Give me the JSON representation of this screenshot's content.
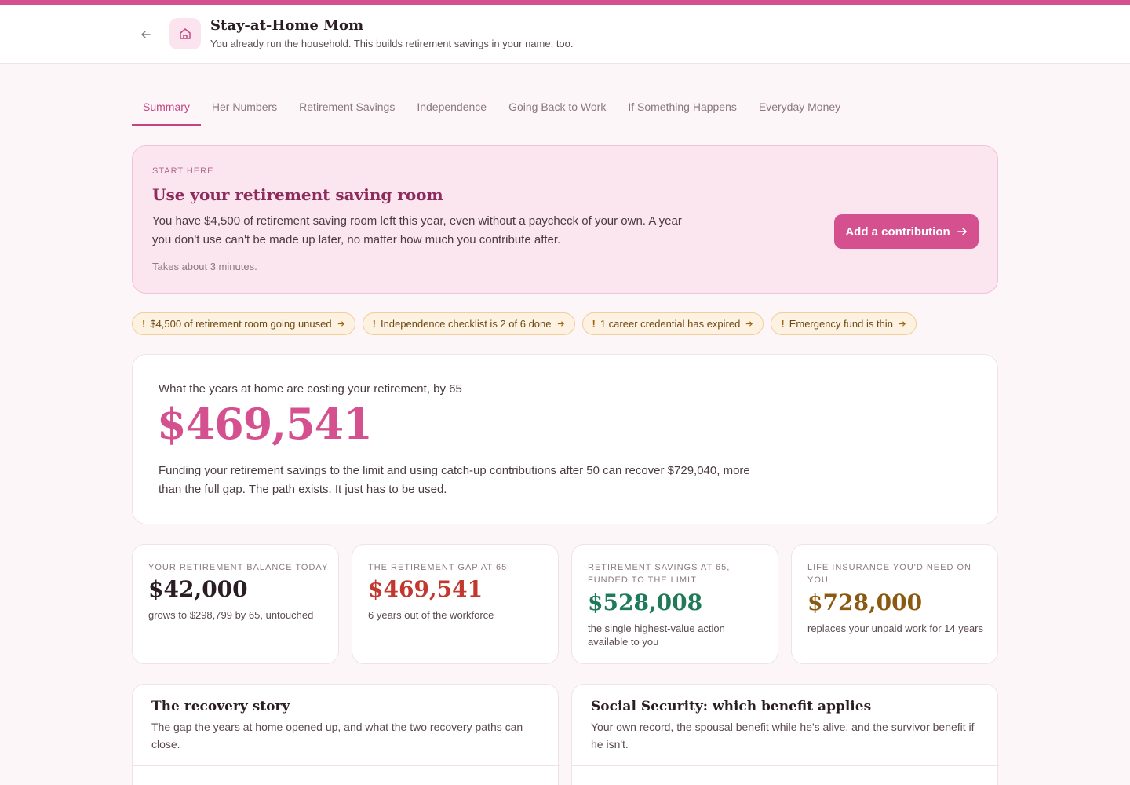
{
  "header": {
    "title": "Stay-at-Home Mom",
    "subtitle": "You already run the household. This builds retirement savings in your name, too."
  },
  "tabs": [
    {
      "label": "Summary",
      "active": true
    },
    {
      "label": "Her Numbers"
    },
    {
      "label": "Retirement Savings"
    },
    {
      "label": "Independence"
    },
    {
      "label": "Going Back to Work"
    },
    {
      "label": "If Something Happens"
    },
    {
      "label": "Everyday Money"
    }
  ],
  "hero": {
    "eyebrow": "START HERE",
    "title": "Use your retirement saving room",
    "body": "You have $4,500 of retirement saving room left this year, even without a paycheck of your own. A year you don't use can't be made up later, no matter how much you contribute after.",
    "note": "Takes about 3 minutes.",
    "cta_label": "Add a contribution"
  },
  "alerts": [
    {
      "label": "$4,500 of retirement room going unused"
    },
    {
      "label": "Independence checklist is 2 of 6 done"
    },
    {
      "label": "1 career credential has expired"
    },
    {
      "label": "Emergency fund is thin"
    }
  ],
  "gap": {
    "label": "What the years at home are costing your retirement, by 65",
    "amount": "$469,541",
    "body": "Funding your retirement savings to the limit and using catch-up contributions after 50 can recover $729,040, more than the full gap. The path exists. It just has to be used."
  },
  "stats": [
    {
      "label": "YOUR RETIREMENT BALANCE TODAY",
      "value": "$42,000",
      "note": "grows to $298,799 by 65, untouched",
      "color": "#2b1d24"
    },
    {
      "label": "THE RETIREMENT GAP AT 65",
      "value": "$469,541",
      "note": "6 years out of the workforce",
      "color": "#c2382e"
    },
    {
      "label": "RETIREMENT SAVINGS AT 65, FUNDED TO THE LIMIT",
      "value": "$528,008",
      "note": "the single highest-value action available to you",
      "color": "#1f7a5a"
    },
    {
      "label": "LIFE INSURANCE YOU'D NEED ON YOU",
      "value": "$728,000",
      "note": "replaces your unpaid work for 14 years",
      "color": "#8a5a12"
    }
  ],
  "stories": [
    {
      "title": "The recovery story",
      "subtitle": "The gap the years at home opened up, and what the two recovery paths can close."
    },
    {
      "title": "Social Security: which benefit applies",
      "subtitle": "Your own record, the spousal benefit while he's alive, and the survivor benefit if he isn't."
    }
  ],
  "colors": {
    "accent": "#d4508f",
    "warning": "#f0cf9c"
  }
}
